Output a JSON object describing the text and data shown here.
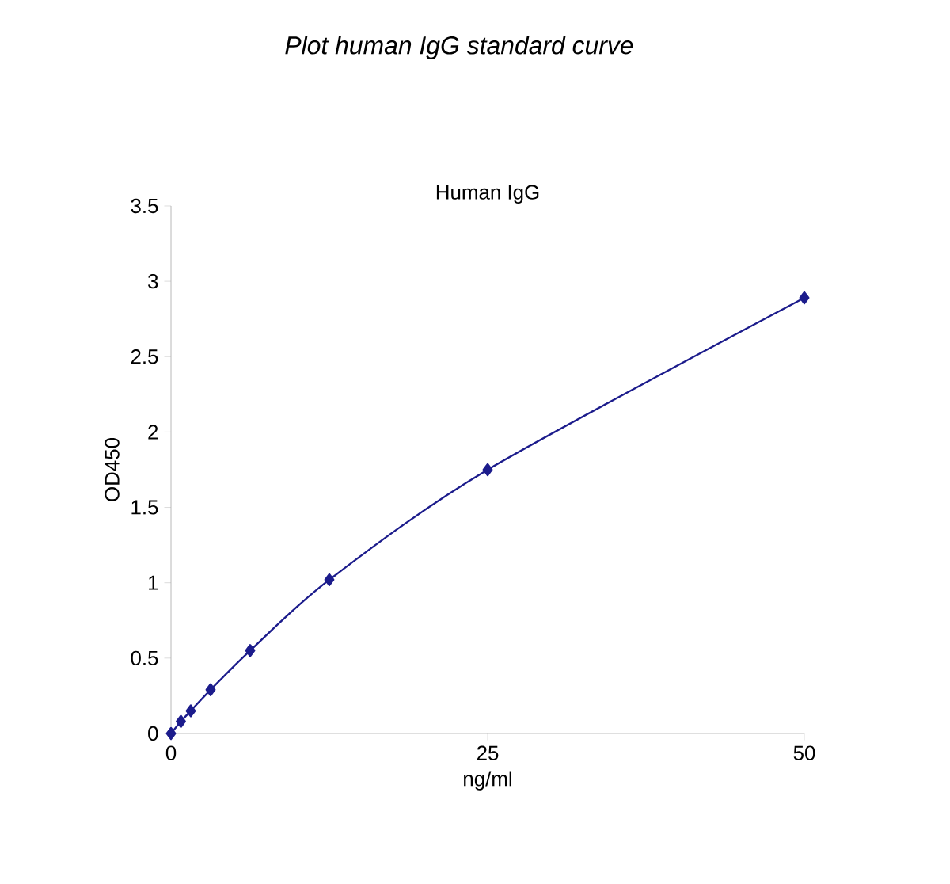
{
  "chart_data": {
    "type": "line",
    "title": "Plot human IgG standard curve",
    "subtitle": "Human IgG",
    "xlabel": "ng/ml",
    "ylabel": "OD450",
    "x": [
      0,
      0.78,
      1.56,
      3.125,
      6.25,
      12.5,
      25,
      50
    ],
    "series": [
      {
        "color": "#1c1c8c",
        "values": [
          0,
          0.08,
          0.15,
          0.29,
          0.55,
          1.02,
          1.75,
          2.89
        ]
      }
    ],
    "xlim": [
      0,
      50
    ],
    "xticks": [
      0,
      25,
      50
    ],
    "ylim": [
      0,
      3.5
    ],
    "yticks": [
      0,
      0.5,
      1,
      1.5,
      2,
      2.5,
      3,
      3.5
    ],
    "grid": false,
    "marker": "diamond",
    "line_style": "solid"
  }
}
